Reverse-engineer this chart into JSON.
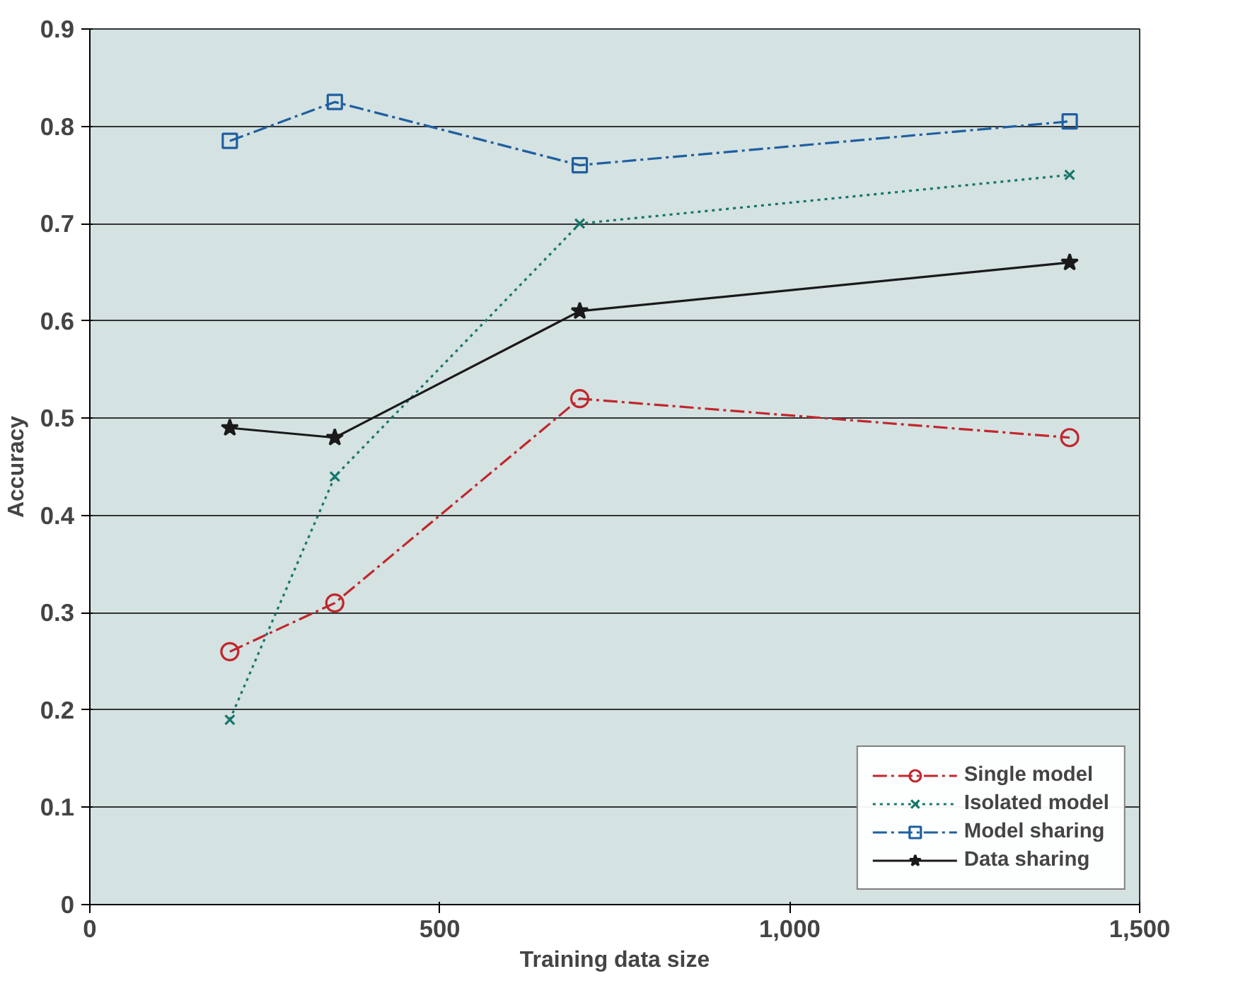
{
  "chart_data": {
    "type": "line",
    "xlabel": "Training data size",
    "ylabel": "Accuracy",
    "x": [
      200,
      350,
      700,
      1400
    ],
    "series": [
      {
        "name": "Single model",
        "color": "#c1272d",
        "values": [
          0.26,
          0.31,
          0.52,
          0.48
        ],
        "marker": "circle",
        "line_style": "dashed"
      },
      {
        "name": "Isolated model",
        "color": "#17766a",
        "values": [
          0.19,
          0.44,
          0.7,
          0.75
        ],
        "marker": "cross",
        "line_style": "dotted"
      },
      {
        "name": "Model sharing",
        "color": "#1f5fa0",
        "values": [
          0.785,
          0.825,
          0.76,
          0.805
        ],
        "marker": "square",
        "line_style": "dashed"
      },
      {
        "name": "Data sharing",
        "color": "#1a1a1a",
        "values": [
          0.49,
          0.48,
          0.61,
          0.66
        ],
        "marker": "star",
        "line_style": "solid"
      }
    ],
    "xlim": [
      0,
      1500
    ],
    "ylim": [
      0,
      0.9
    ],
    "xticks": [
      0,
      500,
      {
        "value": 1000,
        "label": "1,000"
      },
      {
        "value": 1500,
        "label": "1,500"
      }
    ],
    "yticks": [
      0,
      0.1,
      0.2,
      0.3,
      0.4,
      0.5,
      0.6,
      0.7,
      0.8,
      0.9
    ],
    "grid": "y",
    "legend": "bottom right"
  }
}
